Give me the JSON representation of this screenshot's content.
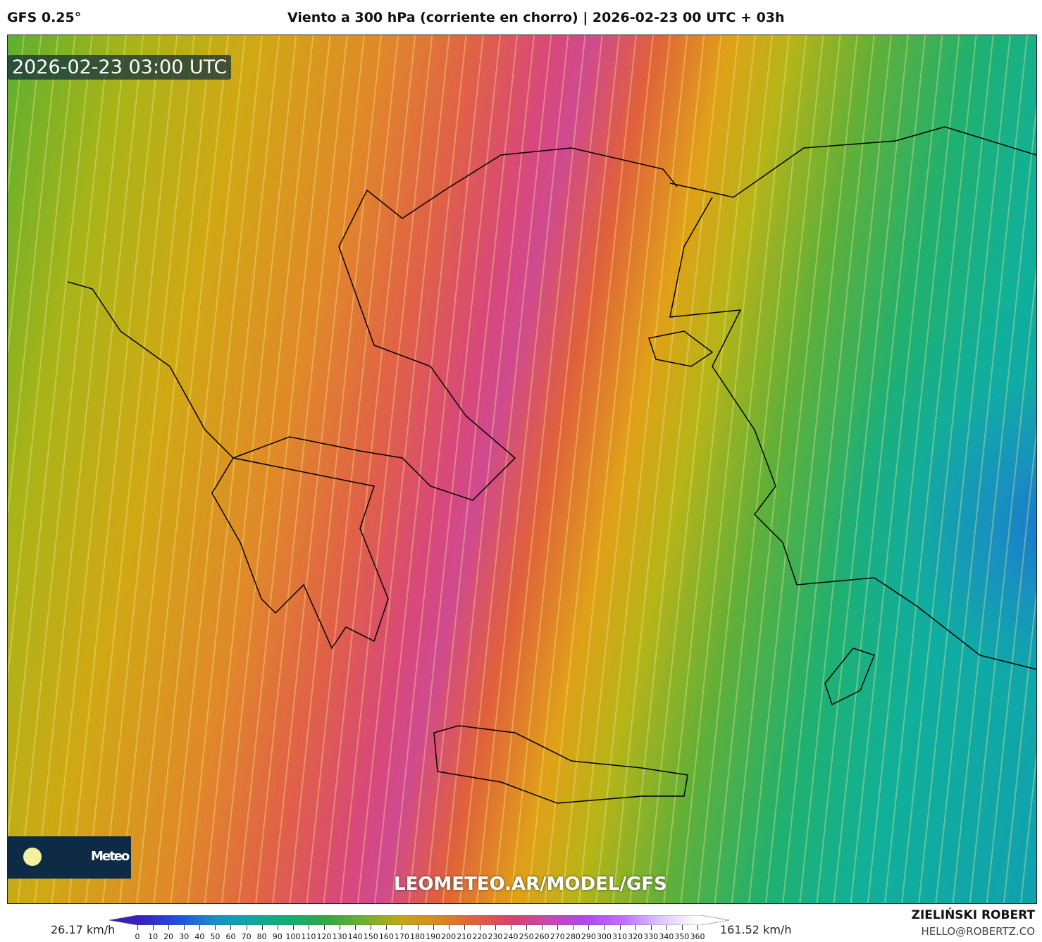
{
  "header": {
    "model": "GFS 0.25°",
    "title": "Viento a 300 hPa (corriente en chorro) | 2026-02-23 00 UTC + 03h"
  },
  "map": {
    "valid_time": "2026-02-23 03:00 UTC",
    "watermark": "LEOMETEO.AR/MODEL/GFS",
    "logo_text": "Meteo",
    "logo_icon": "sun-icon"
  },
  "legend": {
    "min_label": "26.17 km/h",
    "max_label": "161.52 km/h",
    "unit": "km/h",
    "ticks": [
      "0",
      "10",
      "20",
      "30",
      "40",
      "50",
      "60",
      "70",
      "80",
      "90",
      "100",
      "110",
      "120",
      "130",
      "140",
      "150",
      "160",
      "170",
      "180",
      "190",
      "200",
      "210",
      "220",
      "230",
      "240",
      "250",
      "260",
      "270",
      "280",
      "290",
      "300",
      "310",
      "320",
      "330",
      "340",
      "350",
      "360"
    ],
    "colors": [
      "#3a1fc0",
      "#2050e0",
      "#1890c8",
      "#10a8a0",
      "#10b070",
      "#30a848",
      "#70b030",
      "#c0a818",
      "#d88a20",
      "#e06040",
      "#d84070",
      "#c848b0",
      "#b048f0",
      "#c070ff",
      "#e0c8ff",
      "#ffffff"
    ]
  },
  "footer": {
    "author": "ZIELIŃSKI ROBERT",
    "email": "HELLO@ROBERTZ.CO"
  }
}
